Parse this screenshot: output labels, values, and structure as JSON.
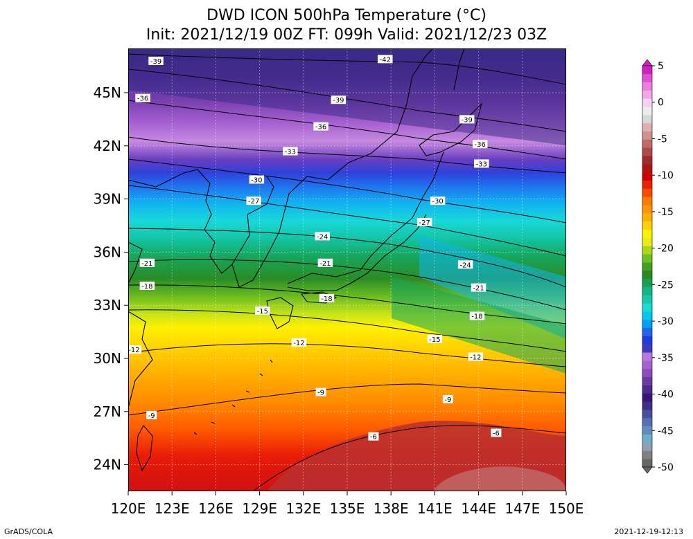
{
  "header": {
    "title_line1": "DWD ICON 500hPa Temperature (°C)",
    "title_line2": "Init: 2021/12/19 00Z  FT: 099h  Valid: 2021/12/23 03Z"
  },
  "map": {
    "lon_range": [
      120,
      150
    ],
    "lat_range": [
      22.5,
      47.5
    ],
    "lon_ticks": [
      "120E",
      "123E",
      "126E",
      "129E",
      "132E",
      "135E",
      "138E",
      "141E",
      "144E",
      "147E",
      "150E"
    ],
    "lat_ticks": [
      "24N",
      "27N",
      "30N",
      "33N",
      "36N",
      "39N",
      "42N",
      "45N"
    ],
    "contour_labels": [
      {
        "text": "-42",
        "lon": 137.6,
        "lat": 46.9
      },
      {
        "text": "-39",
        "lon": 121.9,
        "lat": 46.8
      },
      {
        "text": "-39",
        "lon": 134.4,
        "lat": 44.6
      },
      {
        "text": "-39",
        "lon": 143.2,
        "lat": 43.5
      },
      {
        "text": "-36",
        "lon": 121.0,
        "lat": 44.7
      },
      {
        "text": "-36",
        "lon": 133.2,
        "lat": 43.1
      },
      {
        "text": "-36",
        "lon": 144.1,
        "lat": 42.1
      },
      {
        "text": "-33",
        "lon": 131.1,
        "lat": 41.7
      },
      {
        "text": "-33",
        "lon": 144.2,
        "lat": 41.0
      },
      {
        "text": "-30",
        "lon": 128.8,
        "lat": 40.1
      },
      {
        "text": "-30",
        "lon": 141.2,
        "lat": 38.9
      },
      {
        "text": "-27",
        "lon": 128.6,
        "lat": 38.9
      },
      {
        "text": "-27",
        "lon": 140.3,
        "lat": 37.7
      },
      {
        "text": "-24",
        "lon": 133.3,
        "lat": 36.9
      },
      {
        "text": "-24",
        "lon": 143.1,
        "lat": 35.3
      },
      {
        "text": "-21",
        "lon": 121.3,
        "lat": 35.4
      },
      {
        "text": "-21",
        "lon": 133.5,
        "lat": 35.4
      },
      {
        "text": "-21",
        "lon": 144.0,
        "lat": 34.0
      },
      {
        "text": "-18",
        "lon": 121.3,
        "lat": 34.1
      },
      {
        "text": "-18",
        "lon": 133.6,
        "lat": 33.4
      },
      {
        "text": "-18",
        "lon": 143.9,
        "lat": 32.4
      },
      {
        "text": "-15",
        "lon": 129.2,
        "lat": 32.7
      },
      {
        "text": "-15",
        "lon": 141.0,
        "lat": 31.1
      },
      {
        "text": "-12",
        "lon": 120.4,
        "lat": 30.5
      },
      {
        "text": "-12",
        "lon": 131.7,
        "lat": 30.9
      },
      {
        "text": "-12",
        "lon": 143.8,
        "lat": 30.1
      },
      {
        "text": "-9",
        "lon": 133.2,
        "lat": 28.1
      },
      {
        "text": "-9",
        "lon": 121.6,
        "lat": 26.8
      },
      {
        "text": "-9",
        "lon": 141.9,
        "lat": 27.7
      },
      {
        "text": "-6",
        "lon": 136.8,
        "lat": 25.6
      },
      {
        "text": "-6",
        "lon": 145.2,
        "lat": 25.8
      }
    ]
  },
  "colorbar": {
    "labels": [
      "5",
      "0",
      "-5",
      "-10",
      "-15",
      "-20",
      "-25",
      "-30",
      "-35",
      "-40",
      "-45",
      "-50"
    ],
    "min": -50,
    "max": 5,
    "colors": [
      "#666666",
      "#808080",
      "#8fa0b0",
      "#6aaecb",
      "#5f8dc0",
      "#5570b0",
      "#4a4e9c",
      "#3f2f8a",
      "#3a1777",
      "#4d2a8e",
      "#6a3aa5",
      "#8c4cc0",
      "#a660d0",
      "#b878da",
      "#3c3cc0",
      "#1e3cdc",
      "#1e64ee",
      "#00a0f0",
      "#00c8ee",
      "#16dcd2",
      "#14c8aa",
      "#10b882",
      "#16a050",
      "#2a8a22",
      "#40a020",
      "#70c020",
      "#a8d818",
      "#e8ee14",
      "#fff000",
      "#ffd200",
      "#ffb000",
      "#ff9600",
      "#ff7800",
      "#ff4800",
      "#f01e00",
      "#d20000",
      "#b01414",
      "#a02a2a",
      "#b04a4a",
      "#c06a6a",
      "#d09090",
      "#e0b0b0",
      "#d8d8d8",
      "#ececec",
      "#f8d0f0",
      "#f0a8e8",
      "#e880dc",
      "#e050d0",
      "#d020c0"
    ]
  },
  "footer": {
    "left": "GrADS/COLA",
    "right": "2021-12-19-12:13"
  }
}
